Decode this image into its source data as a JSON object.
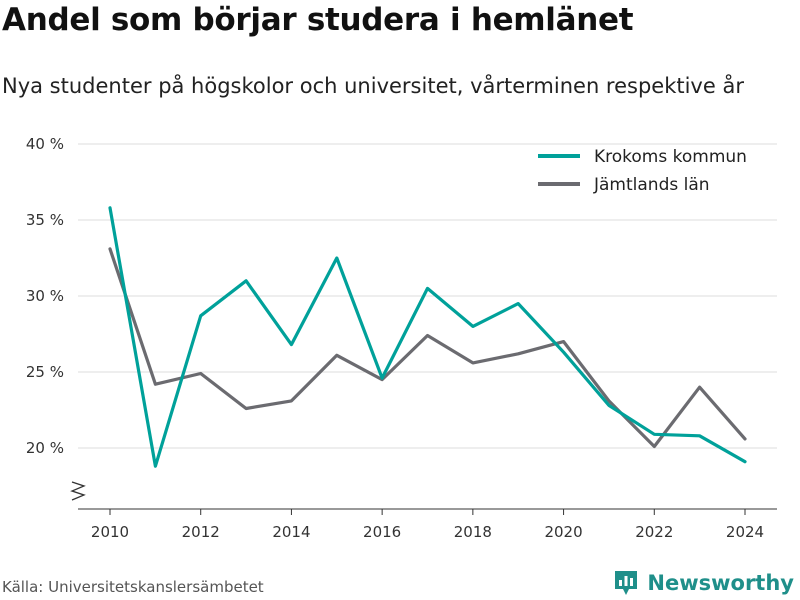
{
  "header": {
    "title": "Andel som börjar studera i hemlänet",
    "subtitle": "Nya studenter på högskolor och universitet, vårterminen respektive år"
  },
  "footer": {
    "source": "Källa: Universitetskanslersämbetet",
    "brand": "Newsworthy",
    "brand_icon": "newsworthy-logo-icon"
  },
  "chart_data": {
    "type": "line",
    "x": [
      2010,
      2011,
      2012,
      2013,
      2014,
      2015,
      2016,
      2017,
      2018,
      2019,
      2020,
      2021,
      2022,
      2023,
      2024
    ],
    "series": [
      {
        "name": "Krokoms kommun",
        "color": "#00a19a",
        "values": [
          35.8,
          18.8,
          28.7,
          31.0,
          26.8,
          32.5,
          24.6,
          30.5,
          28.0,
          29.5,
          26.3,
          22.8,
          20.9,
          20.8,
          19.1
        ]
      },
      {
        "name": "Jämtlands län",
        "color": "#6b6b70",
        "values": [
          33.1,
          24.2,
          24.9,
          22.6,
          23.1,
          26.1,
          24.5,
          27.4,
          25.6,
          26.2,
          27.0,
          23.1,
          20.1,
          24.0,
          20.6
        ]
      }
    ],
    "y_ticks": [
      {
        "value": 20,
        "label": "20 %"
      },
      {
        "value": 25,
        "label": "25 %"
      },
      {
        "value": 30,
        "label": "30 %"
      },
      {
        "value": 35,
        "label": "35 %"
      },
      {
        "value": 40,
        "label": "40 %"
      }
    ],
    "x_ticks": [
      {
        "value": 2010,
        "label": "2010"
      },
      {
        "value": 2012,
        "label": "2012"
      },
      {
        "value": 2014,
        "label": "2014"
      },
      {
        "value": 2016,
        "label": "2016"
      },
      {
        "value": 2018,
        "label": "2018"
      },
      {
        "value": 2020,
        "label": "2020"
      },
      {
        "value": 2022,
        "label": "2022"
      },
      {
        "value": 2024,
        "label": "2024"
      }
    ],
    "ylim": [
      20,
      40
    ],
    "y_axis_break": true,
    "xlim": [
      2010,
      2024
    ],
    "grid": true,
    "legend_position": "top-right",
    "grid_color": "#dddddd",
    "axis_color": "#333333"
  }
}
